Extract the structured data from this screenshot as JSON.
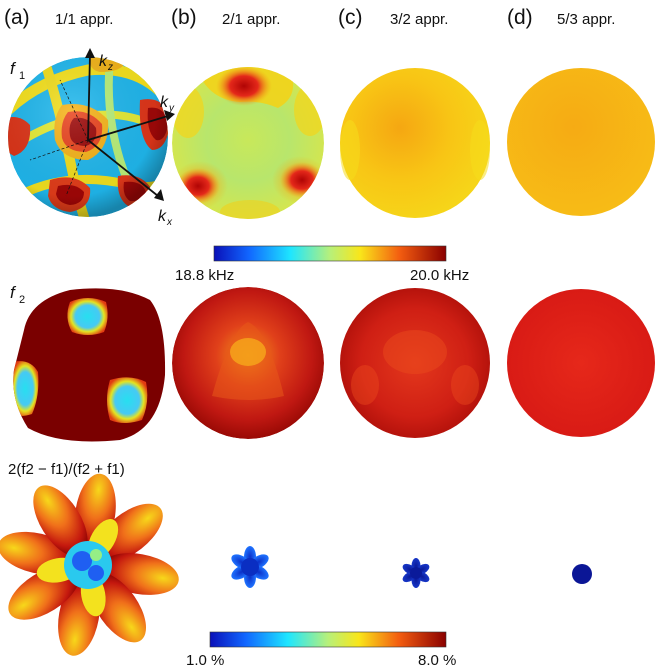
{
  "columns": [
    {
      "letter": "(a)",
      "title": "1/1 appr."
    },
    {
      "letter": "(b)",
      "title": "2/1 appr."
    },
    {
      "letter": "(c)",
      "title": "3/2 appr."
    },
    {
      "letter": "(d)",
      "title": "5/3 appr."
    }
  ],
  "rows": {
    "f1": {
      "label": "f",
      "sub": "1"
    },
    "f2": {
      "label": "f",
      "sub": "2"
    },
    "ratio": {
      "label": "2(f2 − f1)/(f2 + f1)"
    }
  },
  "axes": {
    "kz": "k",
    "kz_sub": "z",
    "ky": "k",
    "ky_sub": "y",
    "kx": "k",
    "kx_sub": "x"
  },
  "colorbar_freq": {
    "min_label": "18.8 kHz",
    "max_label": "20.0 kHz"
  },
  "colorbar_pct": {
    "min_label": "1.0 %",
    "max_label": "8.0 %"
  },
  "colors": {
    "dark_red": "#7a0000",
    "red": "#d91a0e",
    "orange": "#f39a12",
    "yellow": "#f7d21a",
    "cyan": "#27d9ee",
    "blue": "#0c1f9c"
  }
}
